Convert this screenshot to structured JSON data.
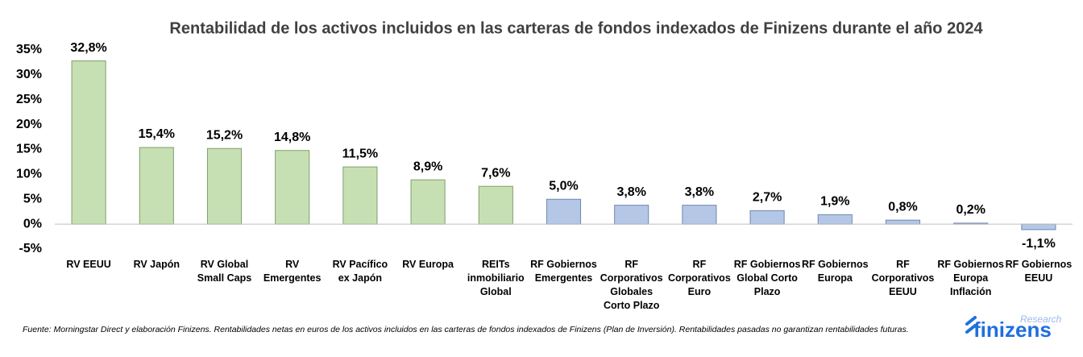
{
  "chart_data": {
    "type": "bar",
    "title": "Rentabilidad de los activos incluidos en las carteras de fondos indexados de Finizens durante el año 2024",
    "categories": [
      "RV EEUU",
      "RV Japón",
      "RV Global\nSmall Caps",
      "RV\nEmergentes",
      "RV Pacífico\nex Japón",
      "RV Europa",
      "REITs\ninmobiliario\nGlobal",
      "RF Gobiernos\nEmergentes",
      "RF\nCorporativos\nGlobales\nCorto Plazo",
      "RF\nCorporativos\nEuro",
      "RF Gobiernos\nGlobal Corto\nPlazo",
      "RF Gobiernos\nEuropa",
      "RF\nCorporativos\nEEUU",
      "RF Gobiernos\nEuropa\nInflación",
      "RF Gobiernos\nEEUU"
    ],
    "values": [
      32.8,
      15.4,
      15.2,
      14.8,
      11.5,
      8.9,
      7.6,
      5.0,
      3.8,
      3.8,
      2.7,
      1.9,
      0.8,
      0.2,
      -1.1
    ],
    "value_labels": [
      "32,8%",
      "15,4%",
      "15,2%",
      "14,8%",
      "11,5%",
      "8,9%",
      "7,6%",
      "5,0%",
      "3,8%",
      "3,8%",
      "2,7%",
      "1,9%",
      "0,8%",
      "0,2%",
      "-1,1%"
    ],
    "colors": [
      "#c6e0b4",
      "#c6e0b4",
      "#c6e0b4",
      "#c6e0b4",
      "#c6e0b4",
      "#c6e0b4",
      "#c6e0b4",
      "#b4c7e7",
      "#b4c7e7",
      "#b4c7e7",
      "#b4c7e7",
      "#b4c7e7",
      "#b4c7e7",
      "#b4c7e7",
      "#b4c7e7"
    ],
    "ylim": [
      -5,
      35
    ],
    "yticks": [
      {
        "value": -5,
        "label": "-5%"
      },
      {
        "value": 0,
        "label": "0%"
      },
      {
        "value": 5,
        "label": "5%"
      },
      {
        "value": 10,
        "label": "10%"
      },
      {
        "value": 15,
        "label": "15%"
      },
      {
        "value": 20,
        "label": "20%"
      },
      {
        "value": 25,
        "label": "25%"
      },
      {
        "value": 30,
        "label": "30%"
      },
      {
        "value": 35,
        "label": "35%"
      }
    ],
    "grid": false,
    "source": "Fuente: Morningstar Direct y elaboración Finizens. Rentabilidades netas en euros de los activos incluidos en las carteras de fondos indexados de Finizens (Plan de Inversión). Rentabilidades pasadas no garantizan rentabilidades futuras."
  },
  "logo": {
    "text": "finizens",
    "tag": "Research"
  }
}
